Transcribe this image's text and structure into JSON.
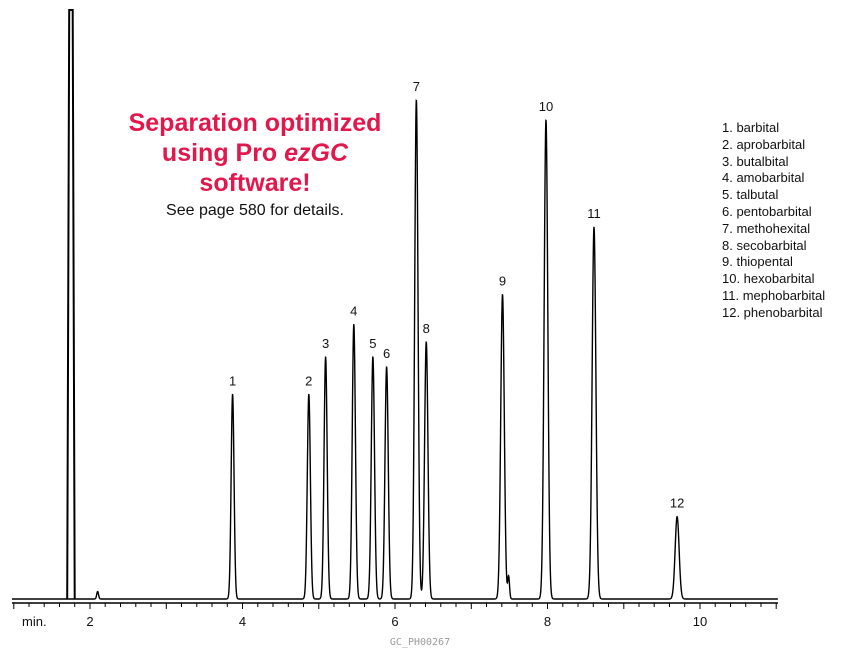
{
  "promo": {
    "headline_lines": [
      "Separation optimized",
      "using Pro ",
      "ezGC",
      "software!"
    ],
    "subtext": "See page 580 for details."
  },
  "figure_code": "GC_PH00267",
  "colors": {
    "trace": "#000000",
    "promo_accent": "#e2174b",
    "code_text": "#9a9a9a"
  },
  "chart_data": {
    "type": "line",
    "title": "",
    "xlabel": "min.",
    "ylabel": "",
    "x_ticks": [
      2,
      4,
      6,
      8,
      10
    ],
    "x_minor_step": 0.2,
    "xlim": [
      1.0,
      11.5
    ],
    "ylim": [
      0,
      1
    ],
    "grid": false,
    "solvent_front": {
      "x": 1.75,
      "width_min": 0.045
    },
    "peaks": [
      {
        "label": "1",
        "x": 3.87,
        "height": 0.41
      },
      {
        "label": "2",
        "x": 4.87,
        "height": 0.41
      },
      {
        "label": "3",
        "x": 5.09,
        "height": 0.485
      },
      {
        "label": "4",
        "x": 5.46,
        "height": 0.55
      },
      {
        "label": "5",
        "x": 5.71,
        "height": 0.485
      },
      {
        "label": "6",
        "x": 5.89,
        "height": 0.465
      },
      {
        "label": "7",
        "x": 6.28,
        "height": 1.0
      },
      {
        "label": "8",
        "x": 6.41,
        "height": 0.515
      },
      {
        "label": "9",
        "x": 7.41,
        "height": 0.61
      },
      {
        "label": "10",
        "x": 7.98,
        "height": 0.96
      },
      {
        "label": "11",
        "x": 8.61,
        "height": 0.745
      },
      {
        "label": "12",
        "x": 9.7,
        "height": 0.165
      }
    ],
    "minor_peaks": [
      {
        "x": 2.1,
        "height": 0.015
      },
      {
        "x": 7.49,
        "height": 0.045
      }
    ],
    "legend_position": "top-right",
    "legend": [
      "1. barbital",
      "2. aprobarbital",
      "3. butalbital",
      "4. amobarbital",
      "5. talbutal",
      "6. pentobarbital",
      "7. methohexital",
      "8. secobarbital",
      "9. thiopental",
      "10. hexobarbital",
      "11. mephobarbital",
      "12. phenobarbital"
    ]
  }
}
